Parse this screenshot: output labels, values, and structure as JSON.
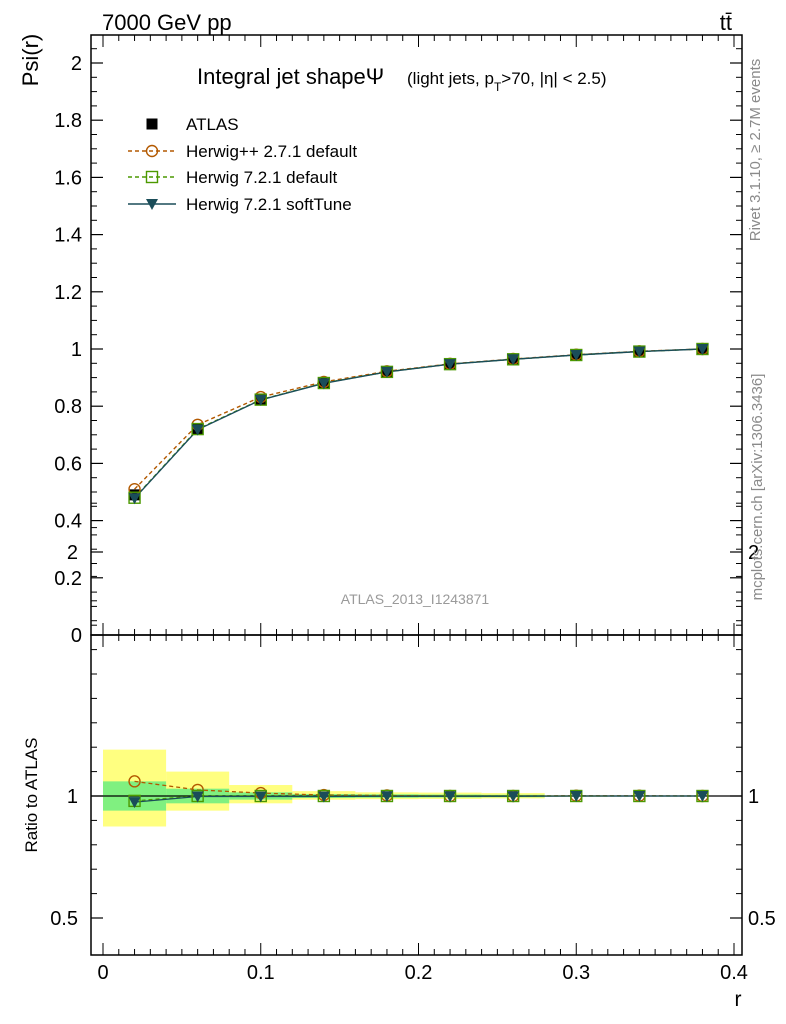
{
  "header": {
    "energy": "7000 GeV pp",
    "process": "tt̄"
  },
  "side_labels": {
    "rivet": "Rivet 3.1.10, ≥ 2.7M events",
    "source": "mcplots.cern.ch [arXiv:1306.3436]"
  },
  "analysis_id": "ATLAS_2013_I1243871",
  "colors": {
    "herwig_pp": "#b35900",
    "herwig_721": "#4c9900",
    "softtune": "#1a4d59",
    "band_stat": "#80f080",
    "band_total": "#ffff80"
  },
  "chart_data": [
    {
      "type": "line",
      "title": "Integral jet shape",
      "title_symbol": "Ψ",
      "subtitle": "(light jets, p_T>70, |η| < 2.5)",
      "ylabel": "Psi(r)",
      "xlabel": "",
      "xlim": [
        0,
        0.4
      ],
      "ylim": [
        0,
        2.1
      ],
      "x_ticks": [
        "0",
        "0.1",
        "0.2",
        "0.3",
        "0.4"
      ],
      "y_ticks": [
        "0",
        "0.2",
        "0.4",
        "0.6",
        "0.8",
        "1",
        "1.2",
        "1.4",
        "1.6",
        "1.8",
        "2"
      ],
      "legend_position": "top-left",
      "x": [
        0.02,
        0.06,
        0.1,
        0.14,
        0.18,
        0.22,
        0.26,
        0.3,
        0.34,
        0.38
      ],
      "series": [
        {
          "name": "ATLAS",
          "marker": "filled-square",
          "values": [
            0.49,
            0.72,
            0.825,
            0.882,
            0.921,
            0.948,
            0.965,
            0.979,
            0.991,
            1.0
          ]
        },
        {
          "name": "Herwig++ 2.7.1 default",
          "marker": "open-circle",
          "line": "dashed",
          "values": [
            0.51,
            0.735,
            0.832,
            0.885,
            0.922,
            0.948,
            0.965,
            0.98,
            0.992,
            1.0
          ]
        },
        {
          "name": "Herwig 7.2.1 default",
          "marker": "open-square",
          "line": "dashed",
          "values": [
            0.48,
            0.72,
            0.823,
            0.881,
            0.92,
            0.947,
            0.964,
            0.979,
            0.991,
            1.0
          ]
        },
        {
          "name": "Herwig 7.2.1 softTune",
          "marker": "filled-triangle-down",
          "line": "solid",
          "values": [
            0.478,
            0.718,
            0.822,
            0.88,
            0.92,
            0.947,
            0.964,
            0.979,
            0.991,
            1.0
          ]
        }
      ]
    },
    {
      "type": "line",
      "title": "",
      "ylabel": "Ratio to ATLAS",
      "xlabel": "r",
      "xlim": [
        0,
        0.4
      ],
      "ylim": [
        0.4,
        2.3
      ],
      "y_ticks": [
        "0.5",
        "1",
        "2"
      ],
      "x": [
        0.02,
        0.06,
        0.1,
        0.14,
        0.18,
        0.22,
        0.26,
        0.3,
        0.34,
        0.38
      ],
      "bands": {
        "bin_edges": [
          0.0,
          0.04,
          0.08,
          0.12,
          0.16,
          0.2,
          0.24,
          0.28,
          0.32,
          0.36,
          0.4
        ],
        "stat": [
          [
            0.94,
            1.06
          ],
          [
            0.97,
            1.03
          ],
          [
            0.985,
            1.015
          ],
          [
            0.992,
            1.008
          ],
          [
            0.993,
            1.007
          ],
          [
            0.994,
            1.006
          ],
          [
            0.995,
            1.005
          ],
          [
            0.998,
            1.002
          ],
          [
            0.999,
            1.001
          ],
          [
            0.999,
            1.001
          ]
        ],
        "total": [
          [
            0.875,
            1.19
          ],
          [
            0.94,
            1.1
          ],
          [
            0.97,
            1.045
          ],
          [
            0.985,
            1.02
          ],
          [
            0.987,
            1.015
          ],
          [
            0.988,
            1.014
          ],
          [
            0.99,
            1.012
          ],
          [
            0.997,
            1.003
          ],
          [
            0.998,
            1.002
          ],
          [
            0.999,
            1.001
          ]
        ]
      },
      "series": [
        {
          "name": "Herwig++ 2.7.1 default",
          "values": [
            1.06,
            1.025,
            1.012,
            1.004,
            1.002,
            1.0,
            1.0,
            1.001,
            1.001,
            1.0
          ]
        },
        {
          "name": "Herwig 7.2.1 default",
          "values": [
            0.98,
            1.0,
            1.0,
            1.0,
            1.0,
            1.0,
            1.0,
            1.0,
            1.0,
            1.0
          ]
        },
        {
          "name": "Herwig 7.2.1 softTune",
          "values": [
            0.975,
            0.998,
            0.998,
            0.998,
            0.999,
            0.999,
            0.999,
            1.0,
            1.0,
            1.0
          ]
        }
      ]
    }
  ]
}
